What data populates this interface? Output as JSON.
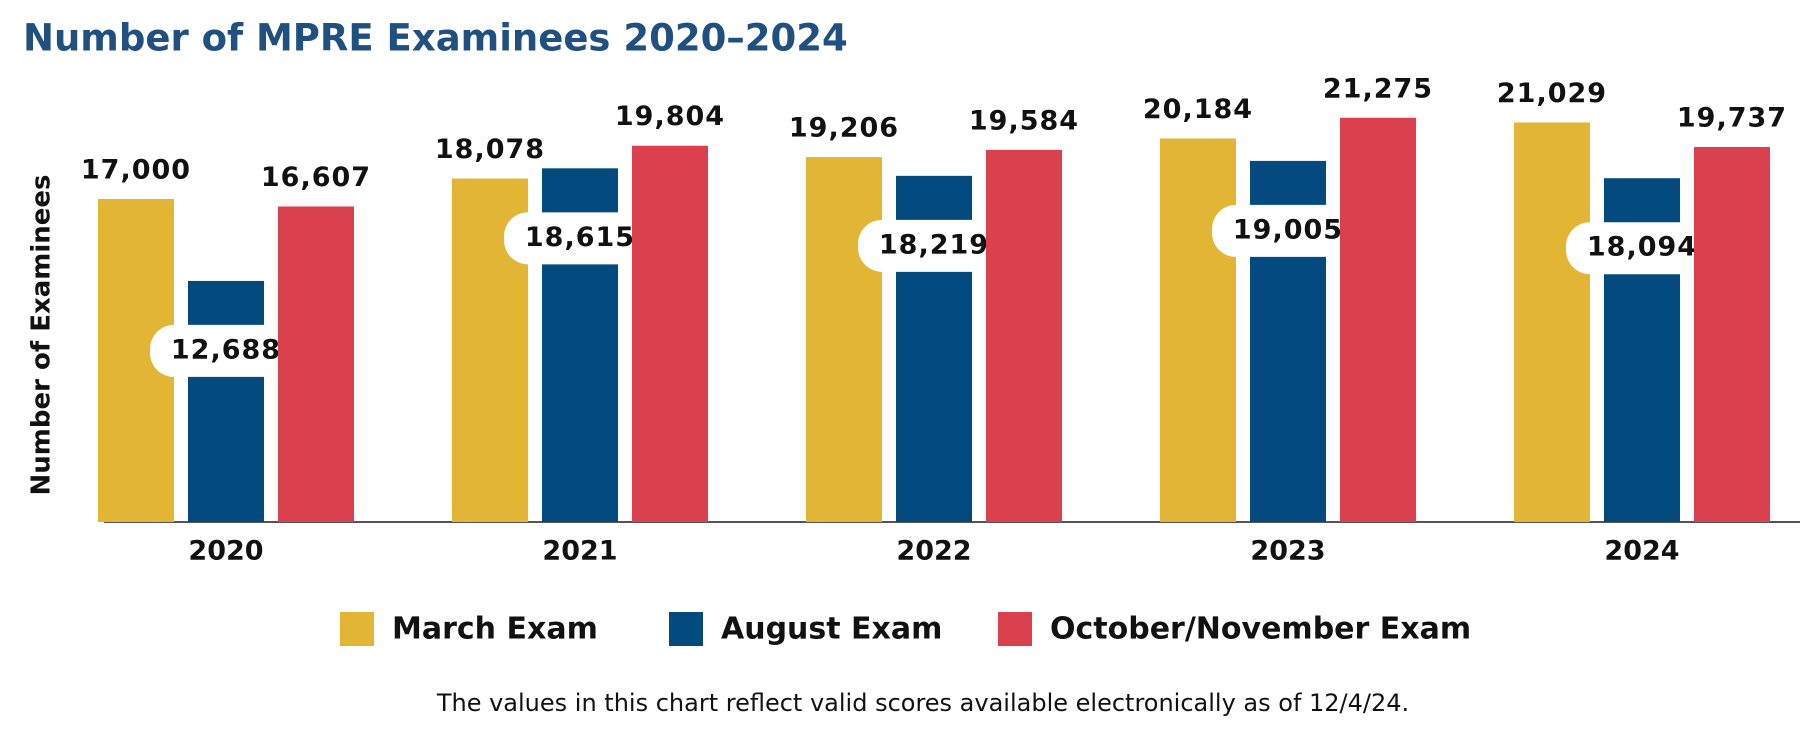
{
  "chart_data": {
    "type": "bar",
    "title": "Number of MPRE Examinees 2020–2024",
    "y_label": "Number of Examinees",
    "note": "The values in this chart reflect valid scores available electronically as of 12/4/24.",
    "categories": [
      "2020",
      "2021",
      "2022",
      "2023",
      "2024"
    ],
    "series": [
      {
        "name": "March Exam",
        "color": "#e2b534",
        "values": [
          17000,
          18078,
          19206,
          20184,
          21029
        ],
        "value_labels": [
          "17,000",
          "18,078",
          "19,206",
          "20,184",
          "21,029"
        ]
      },
      {
        "name": "August Exam",
        "color": "#034a7e",
        "values": [
          12688,
          18615,
          18219,
          19005,
          18094
        ],
        "value_labels": [
          "12,688",
          "18,615",
          "18,219",
          "19,005",
          "18,094"
        ]
      },
      {
        "name": "October/November Exam",
        "color": "#db404f",
        "values": [
          16607,
          19804,
          19584,
          21275,
          19737
        ],
        "value_labels": [
          "16,607",
          "19,804",
          "19,584",
          "21,275",
          "19,737"
        ]
      }
    ],
    "ylim": [
      0,
      24000
    ]
  }
}
